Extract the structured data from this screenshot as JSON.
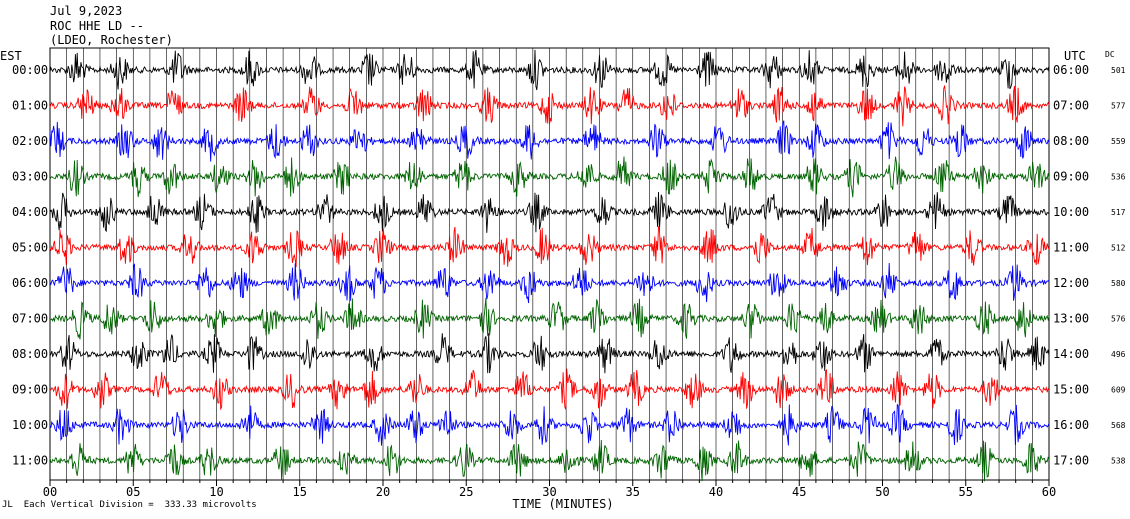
{
  "header": {
    "date": "Jul 9,2023",
    "station": "ROC HHE LD --",
    "network": "(LDEO, Rochester)"
  },
  "chart_data": {
    "type": "line",
    "title": "Jul 9,2023",
    "subtitle": "ROC HHE LD -- (LDEO, Rochester)",
    "xlabel": "TIME (MINUTES)",
    "left_axis_label": "EST",
    "right_axis_label": "UTC",
    "dc_label": "DC",
    "xlim": [
      0,
      60
    ],
    "x_ticks": [
      "00",
      "05",
      "10",
      "15",
      "20",
      "25",
      "30",
      "35",
      "40",
      "45",
      "50",
      "55",
      "60"
    ],
    "grid": "vertical-1-minute",
    "trace_colors": [
      "#000000",
      "#ff0000",
      "#0000ff",
      "#006400"
    ],
    "series": [
      {
        "est": "00:00",
        "utc": "06:00",
        "dc": "501",
        "color": "#000000"
      },
      {
        "est": "01:00",
        "utc": "07:00",
        "dc": "577",
        "color": "#ff0000"
      },
      {
        "est": "02:00",
        "utc": "08:00",
        "dc": "559",
        "color": "#0000ff"
      },
      {
        "est": "03:00",
        "utc": "09:00",
        "dc": "536",
        "color": "#006400"
      },
      {
        "est": "04:00",
        "utc": "10:00",
        "dc": "517",
        "color": "#000000"
      },
      {
        "est": "05:00",
        "utc": "11:00",
        "dc": "512",
        "color": "#ff0000"
      },
      {
        "est": "06:00",
        "utc": "12:00",
        "dc": "580",
        "color": "#0000ff"
      },
      {
        "est": "07:00",
        "utc": "13:00",
        "dc": "576",
        "color": "#006400"
      },
      {
        "est": "08:00",
        "utc": "14:00",
        "dc": "496",
        "color": "#000000"
      },
      {
        "est": "09:00",
        "utc": "15:00",
        "dc": "609",
        "color": "#ff0000"
      },
      {
        "est": "10:00",
        "utc": "16:00",
        "dc": "568",
        "color": "#0000ff"
      },
      {
        "est": "11:00",
        "utc": "17:00",
        "dc": "538",
        "color": "#006400"
      }
    ],
    "footer_scale": "Each Vertical Division =  333.33 microvolts"
  }
}
